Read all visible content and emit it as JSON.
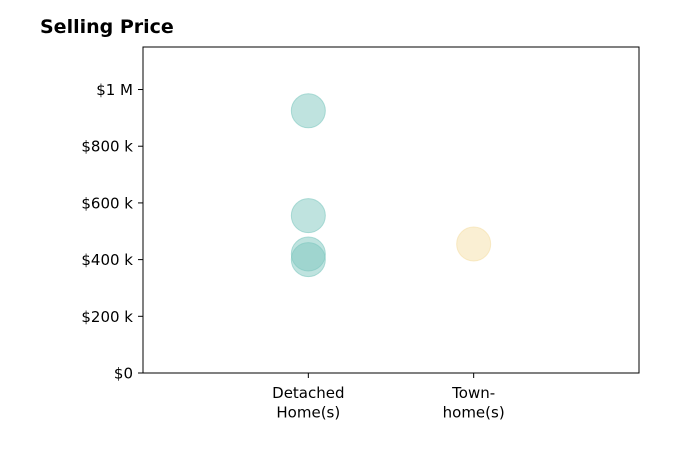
{
  "chart_data": {
    "type": "scatter",
    "title": "Selling Price",
    "xlabel": "",
    "ylabel": "",
    "categories": [
      "Detached\nHome(s)",
      "Town-\nhome(s)"
    ],
    "xlim": [
      -1,
      2
    ],
    "ylim": [
      0,
      1150000
    ],
    "yticks": [
      {
        "value": 0,
        "label": "$0"
      },
      {
        "value": 200000,
        "label": "$200 k"
      },
      {
        "value": 400000,
        "label": "$400 k"
      },
      {
        "value": 600000,
        "label": "$600 k"
      },
      {
        "value": 800000,
        "label": "$800 k"
      },
      {
        "value": 1000000,
        "label": "$1 M"
      }
    ],
    "series": [
      {
        "color": "#7fc8c0",
        "points": [
          {
            "category": 0,
            "y": 925000
          },
          {
            "category": 0,
            "y": 555000
          },
          {
            "category": 0,
            "y": 420000
          },
          {
            "category": 0,
            "y": 400000
          }
        ]
      },
      {
        "color": "#f5dfa8",
        "points": [
          {
            "category": 1,
            "y": 455000
          }
        ]
      }
    ],
    "grid": false,
    "legend": "none"
  }
}
